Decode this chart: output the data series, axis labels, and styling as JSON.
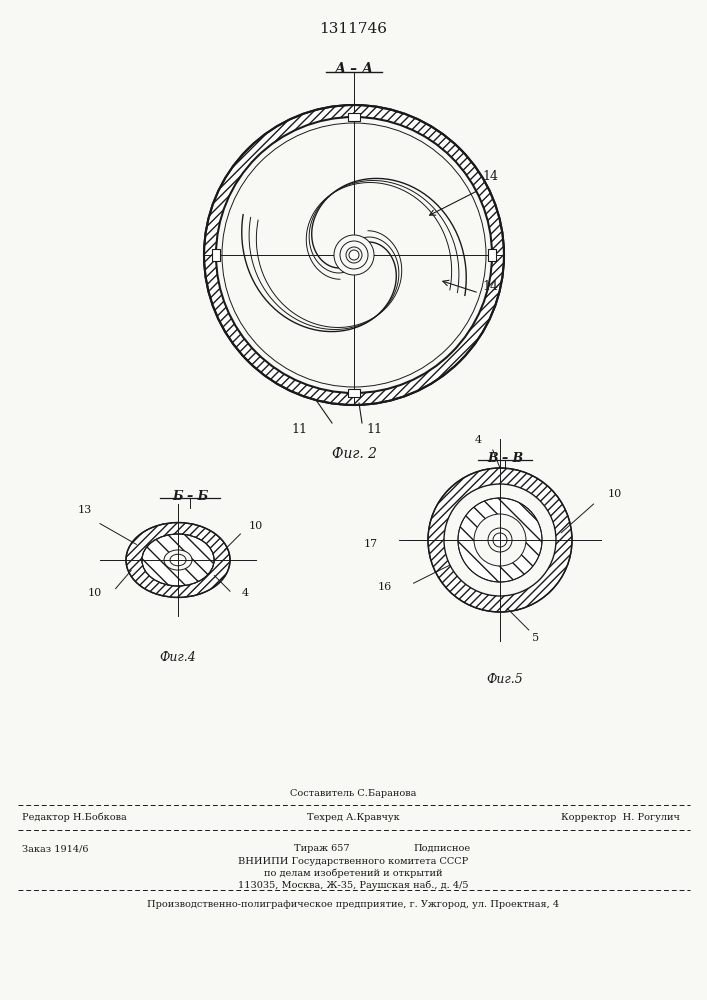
{
  "title": "1311746",
  "bg_color": "#f8f8f4",
  "line_color": "#1a1a1a",
  "fig2_label": "А – А",
  "fig2_caption": "Фиг. 2",
  "fig4_label": "Б – Б",
  "fig4_caption": "Фиг.4",
  "fig5_label": "В – В",
  "fig5_caption": "Фиг.5",
  "footer_sestavitel": "Составитель С.Баранова",
  "footer_redaktor": "Редактор Н.Бобкова",
  "footer_tehred": "Техред А.Кравчук",
  "footer_korrektor": "Корректор  Н. Рогулич",
  "footer_zakaz": "Заказ 1914/6",
  "footer_tirazh": "Тираж 657",
  "footer_podpisnoe": "Подписное",
  "footer_vniip1": "ВНИИПИ Государственного комитета СССР",
  "footer_vniip2": "по делам изобретений и открытий",
  "footer_vniip3": "113035, Москва, Ж-35, Раушская наб., д. 4/5",
  "footer_bottom": "Производственно-полиграфическое предприятие, г. Ужгород, ул. Проектная, 4"
}
